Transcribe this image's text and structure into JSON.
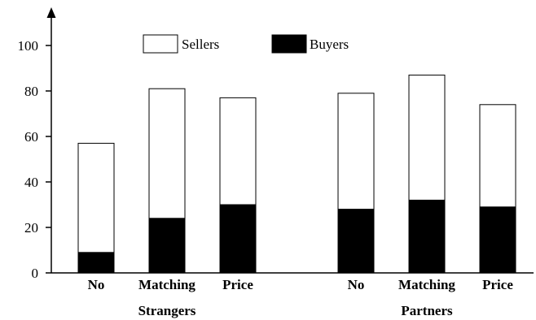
{
  "chart_data": {
    "type": "bar",
    "stacked": true,
    "groups": [
      {
        "label": "Strangers",
        "categories": [
          "No",
          "Matching",
          "Price"
        ],
        "series": [
          {
            "name": "Buyers",
            "values": [
              9,
              24,
              30
            ]
          },
          {
            "name": "Sellers",
            "values": [
              48,
              57,
              47
            ]
          }
        ]
      },
      {
        "label": "Partners",
        "categories": [
          "No",
          "Matching",
          "Price"
        ],
        "series": [
          {
            "name": "Buyers",
            "values": [
              28,
              32,
              29
            ]
          },
          {
            "name": "Sellers",
            "values": [
              51,
              55,
              45
            ]
          }
        ]
      }
    ],
    "yticks": [
      "0",
      "20",
      "40",
      "60",
      "80",
      "100"
    ],
    "ylim": [
      0,
      100
    ],
    "legend": [
      {
        "name": "Sellers",
        "color": "#ffffff"
      },
      {
        "name": "Buyers",
        "color": "#000000"
      }
    ],
    "legend_position": "top-center",
    "grid": false,
    "colors": {
      "Buyers": "#000000",
      "Sellers": "#ffffff",
      "outline": "#000000"
    }
  }
}
